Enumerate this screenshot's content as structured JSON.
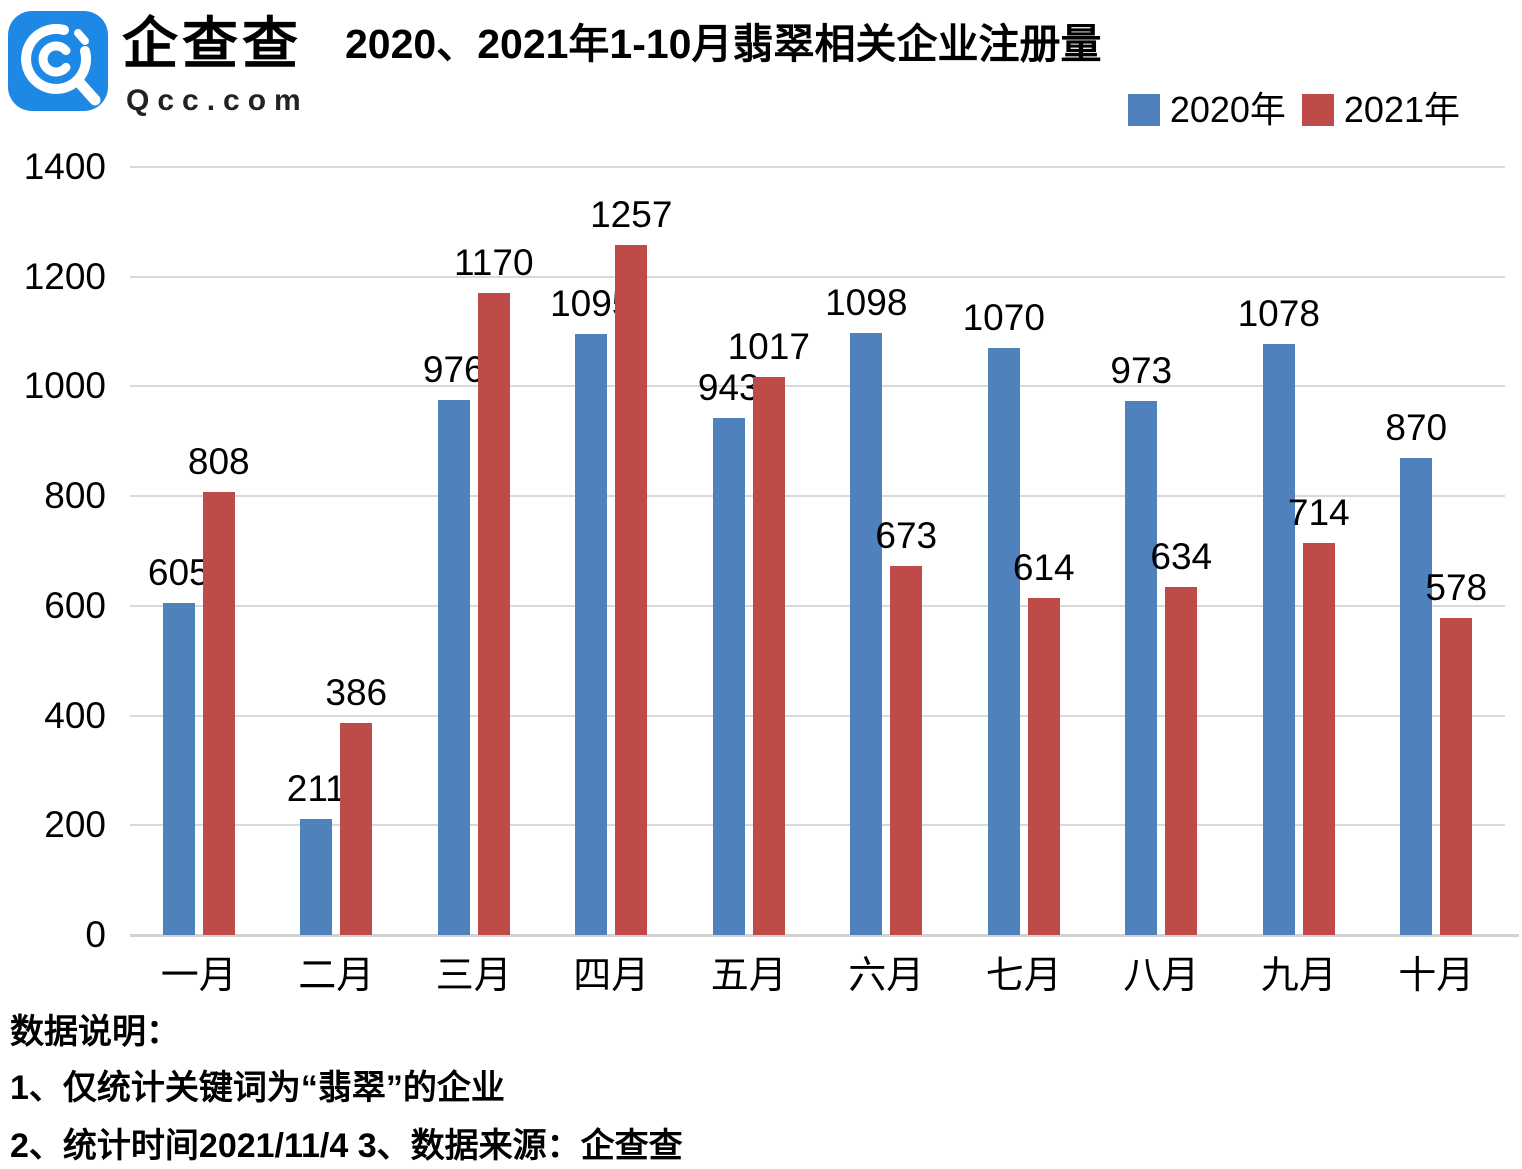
{
  "logo": {
    "brand_name": "企查查",
    "domain": "Qcc.com",
    "brand_color": "#1E88E5"
  },
  "chart_data": {
    "type": "bar",
    "title": "2020、2021年1-10月翡翠相关企业注册量",
    "categories": [
      "一月",
      "二月",
      "三月",
      "四月",
      "五月",
      "六月",
      "七月",
      "八月",
      "九月",
      "十月"
    ],
    "series": [
      {
        "name": "2020年",
        "color": "#4F81BD",
        "values": [
          605,
          211,
          976,
          1095,
          943,
          1098,
          1070,
          973,
          1078,
          870
        ]
      },
      {
        "name": "2021年",
        "color": "#BE4B48",
        "values": [
          808,
          386,
          1170,
          1257,
          1017,
          673,
          614,
          634,
          714,
          578
        ]
      }
    ],
    "xlabel": "",
    "ylabel": "",
    "ylim": [
      0,
      1400
    ],
    "yticks": [
      0,
      200,
      400,
      600,
      800,
      1000,
      1200,
      1400
    ],
    "grid": true,
    "grid_color": "#d9d9d9",
    "legend_position": "top-right",
    "data_labels": true
  },
  "footer": {
    "heading": "数据说明：",
    "note1": "1、仅统计关键词为“翡翠”的企业",
    "note2": "2、统计时间2021/11/4  3、数据来源：企查查"
  }
}
